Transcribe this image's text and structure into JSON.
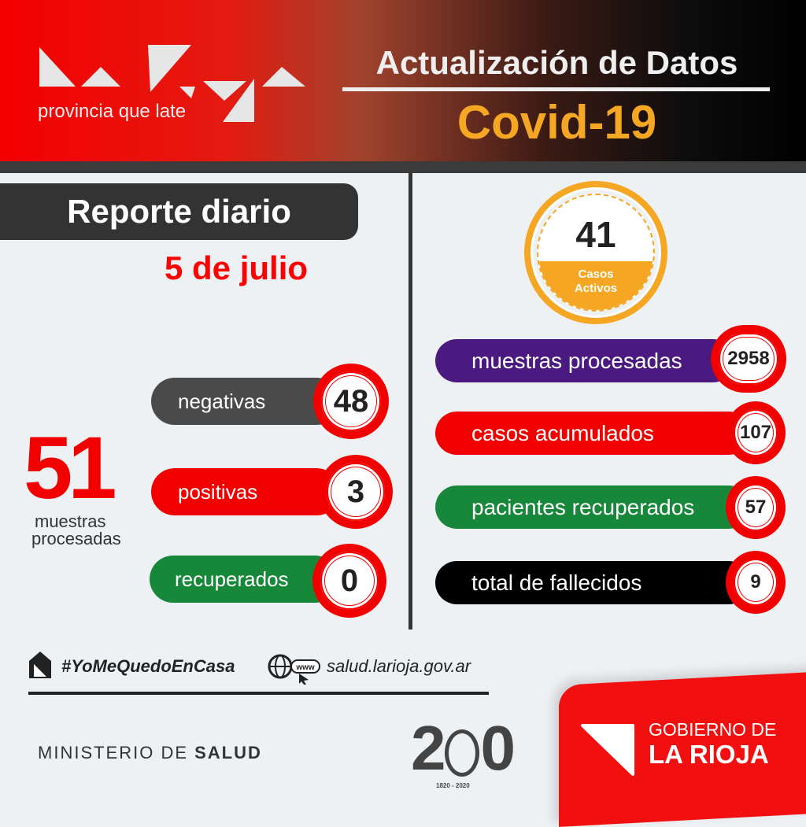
{
  "header": {
    "logo_text": "La Rioja",
    "logo_tagline": "provincia que late",
    "title": "Actualización de Datos",
    "subtitle": "Covid-19"
  },
  "left": {
    "report_label": "Reporte diario",
    "date": "5 de julio",
    "total": {
      "value": "51",
      "label_line1": "muestras",
      "label_line2": "procesadas"
    },
    "items": [
      {
        "label": "negativas",
        "value": "48",
        "color": "#4a4a4a"
      },
      {
        "label": "positivas",
        "value": "3",
        "color": "#f20000"
      },
      {
        "label": "recuperados",
        "value": "0",
        "color": "#17883a"
      }
    ]
  },
  "right": {
    "active": {
      "value": "41",
      "label_line1": "Casos",
      "label_line2": "Activos",
      "color": "#f5a623"
    },
    "items": [
      {
        "label": "muestras procesadas",
        "value": "2958",
        "color": "#4a1a80"
      },
      {
        "label": "casos acumulados",
        "value": "107",
        "color": "#f20000"
      },
      {
        "label": "pacientes recuperados",
        "value": "57",
        "color": "#17883a"
      },
      {
        "label": "total de fallecidos",
        "value": "9",
        "color": "#000000"
      }
    ]
  },
  "footer": {
    "hashtag": "#YoMeQuedoEnCasa",
    "website": "salud.larioja.gov.ar",
    "www_label": "www",
    "ministry_prefix": "MINISTERIO DE ",
    "ministry_bold": "SALUD",
    "bicentennial_years": "1820 - 2020",
    "gov_line1": "GOBIERNO DE",
    "gov_line2": "LA RIOJA",
    "icons": [
      "house-icon",
      "globe-icon",
      "cursor-icon"
    ]
  }
}
